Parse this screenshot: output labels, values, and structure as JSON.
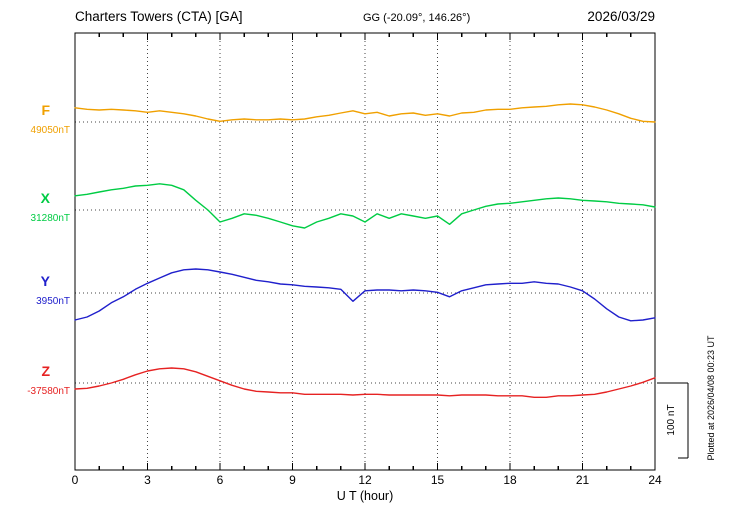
{
  "header": {
    "title": "Charters Towers (CTA)  [GA]",
    "coords": "GG (-20.09°, 146.26°)",
    "date": "2026/03/29"
  },
  "footer": {
    "xlabel": "U T (hour)"
  },
  "side": {
    "plotted_at": "Plotted at 2026/04/08 00:23 UT",
    "scale_label": "100 nT"
  },
  "chart_data": {
    "type": "line",
    "title": "Magnetogram Charters Towers (CTA) [GA] 2026/03/29",
    "xlabel": "U T (hour)",
    "x_range": [
      0,
      24
    ],
    "x_ticks": [
      0,
      3,
      6,
      9,
      12,
      15,
      18,
      21,
      24
    ],
    "minor_tick_hours": 1,
    "x_step_hours": 0.5,
    "scale_bar_nT": 100,
    "grid": "dotted",
    "legend_position": "left",
    "series": [
      {
        "name": "F",
        "label": "F",
        "baseline_label": "49050nT",
        "baseline_nT": 49050,
        "color": "#f0a000",
        "offsets_nT": [
          19,
          17,
          16,
          17,
          16,
          15,
          13,
          15,
          13,
          11,
          8,
          4,
          1,
          3,
          4,
          3,
          3,
          4,
          3,
          4,
          7,
          9,
          12,
          15,
          11,
          13,
          8,
          11,
          12,
          9,
          11,
          8,
          12,
          13,
          16,
          17,
          17,
          19,
          20,
          21,
          23,
          24,
          23,
          20,
          16,
          11,
          5,
          1,
          0
        ]
      },
      {
        "name": "X",
        "label": "X",
        "baseline_label": "31280nT",
        "baseline_nT": 31280,
        "color": "#00cc44",
        "offsets_nT": [
          19,
          21,
          24,
          27,
          29,
          32,
          33,
          35,
          33,
          27,
          13,
          0,
          -16,
          -11,
          -5,
          -7,
          -11,
          -16,
          -21,
          -24,
          -16,
          -11,
          -5,
          -8,
          -16,
          -5,
          -11,
          -5,
          -8,
          -11,
          -8,
          -19,
          -5,
          0,
          5,
          8,
          9,
          11,
          13,
          15,
          16,
          15,
          13,
          12,
          11,
          9,
          8,
          7,
          4
        ]
      },
      {
        "name": "Y",
        "label": "Y",
        "baseline_label": "3950nT",
        "baseline_nT": 3950,
        "color": "#2020cc",
        "offsets_nT": [
          -36,
          -32,
          -24,
          -13,
          -5,
          5,
          13,
          20,
          27,
          31,
          32,
          31,
          28,
          25,
          21,
          17,
          15,
          12,
          11,
          9,
          8,
          7,
          5,
          -11,
          3,
          4,
          4,
          3,
          4,
          3,
          1,
          -5,
          3,
          7,
          11,
          12,
          13,
          13,
          15,
          13,
          12,
          8,
          3,
          -8,
          -21,
          -32,
          -37,
          -36,
          -33
        ]
      },
      {
        "name": "Z",
        "label": "Z",
        "baseline_label": "-37580nT",
        "baseline_nT": -37580,
        "color": "#e62222",
        "offsets_nT": [
          -8,
          -7,
          -4,
          0,
          5,
          11,
          16,
          19,
          20,
          19,
          15,
          9,
          3,
          -3,
          -8,
          -11,
          -12,
          -13,
          -13,
          -15,
          -15,
          -15,
          -15,
          -16,
          -15,
          -15,
          -16,
          -16,
          -16,
          -16,
          -16,
          -17,
          -16,
          -16,
          -16,
          -17,
          -17,
          -17,
          -19,
          -19,
          -17,
          -17,
          -16,
          -15,
          -12,
          -8,
          -4,
          1,
          7
        ]
      }
    ]
  }
}
